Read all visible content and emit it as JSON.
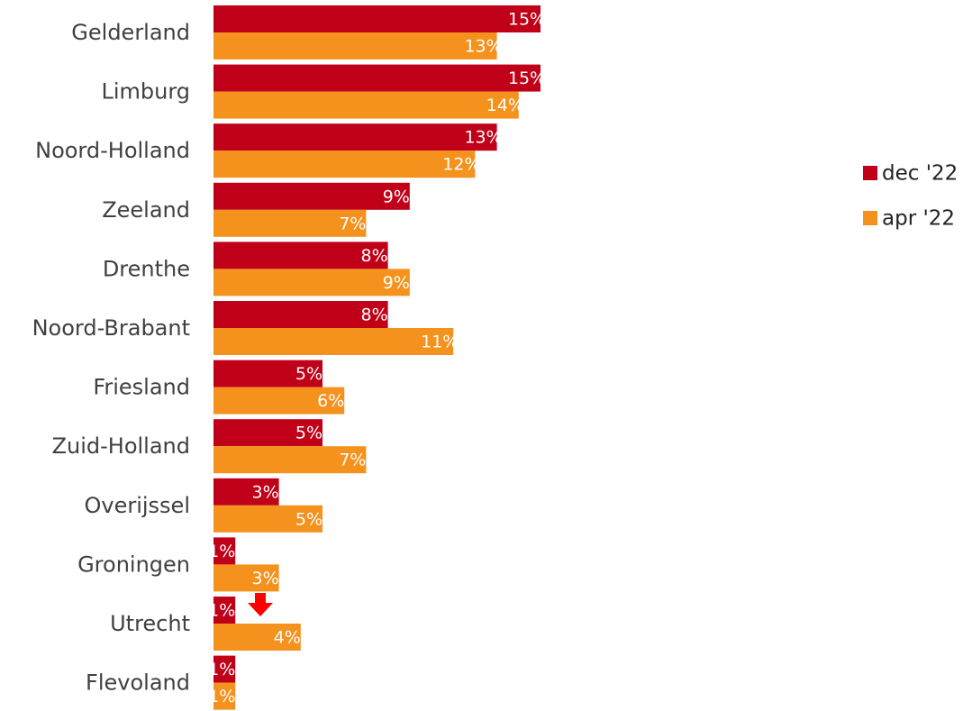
{
  "chart_data": {
    "type": "bar",
    "orientation": "horizontal",
    "title": "",
    "xlabel": "",
    "ylabel": "",
    "xlim": [
      0,
      15
    ],
    "grid": false,
    "value_format": "percent",
    "categories": [
      "Gelderland",
      "Limburg",
      "Noord-Holland",
      "Zeeland",
      "Drenthe",
      "Noord-Brabant",
      "Friesland",
      "Zuid-Holland",
      "Overijssel",
      "Groningen",
      "Utrecht",
      "Flevoland"
    ],
    "series": [
      {
        "name": "dec '22",
        "color": "#c00018",
        "values": [
          15,
          15,
          13,
          9,
          8,
          8,
          5,
          5,
          3,
          1,
          1,
          1
        ]
      },
      {
        "name": "apr '22",
        "color": "#f5921e",
        "values": [
          13,
          14,
          12,
          7,
          9,
          11,
          6,
          7,
          5,
          3,
          4,
          1
        ]
      }
    ],
    "data_labels": {
      "dec '22": [
        "15%",
        "15%",
        "13%",
        "9%",
        "8%",
        "8%",
        "5%",
        "5%",
        "3%",
        "1%",
        "1%",
        "1%"
      ],
      "apr '22": [
        "13%",
        "14%",
        "12%",
        "7%",
        "9%",
        "11%",
        "6%",
        "7%",
        "5%",
        "3%",
        "4%",
        "1%"
      ]
    },
    "legend": {
      "position": "right",
      "entries": [
        "dec '22",
        "apr '22"
      ]
    },
    "annotations": [
      {
        "type": "down-arrow-icon",
        "category": "Utrecht",
        "color": "#ff0000"
      }
    ]
  }
}
